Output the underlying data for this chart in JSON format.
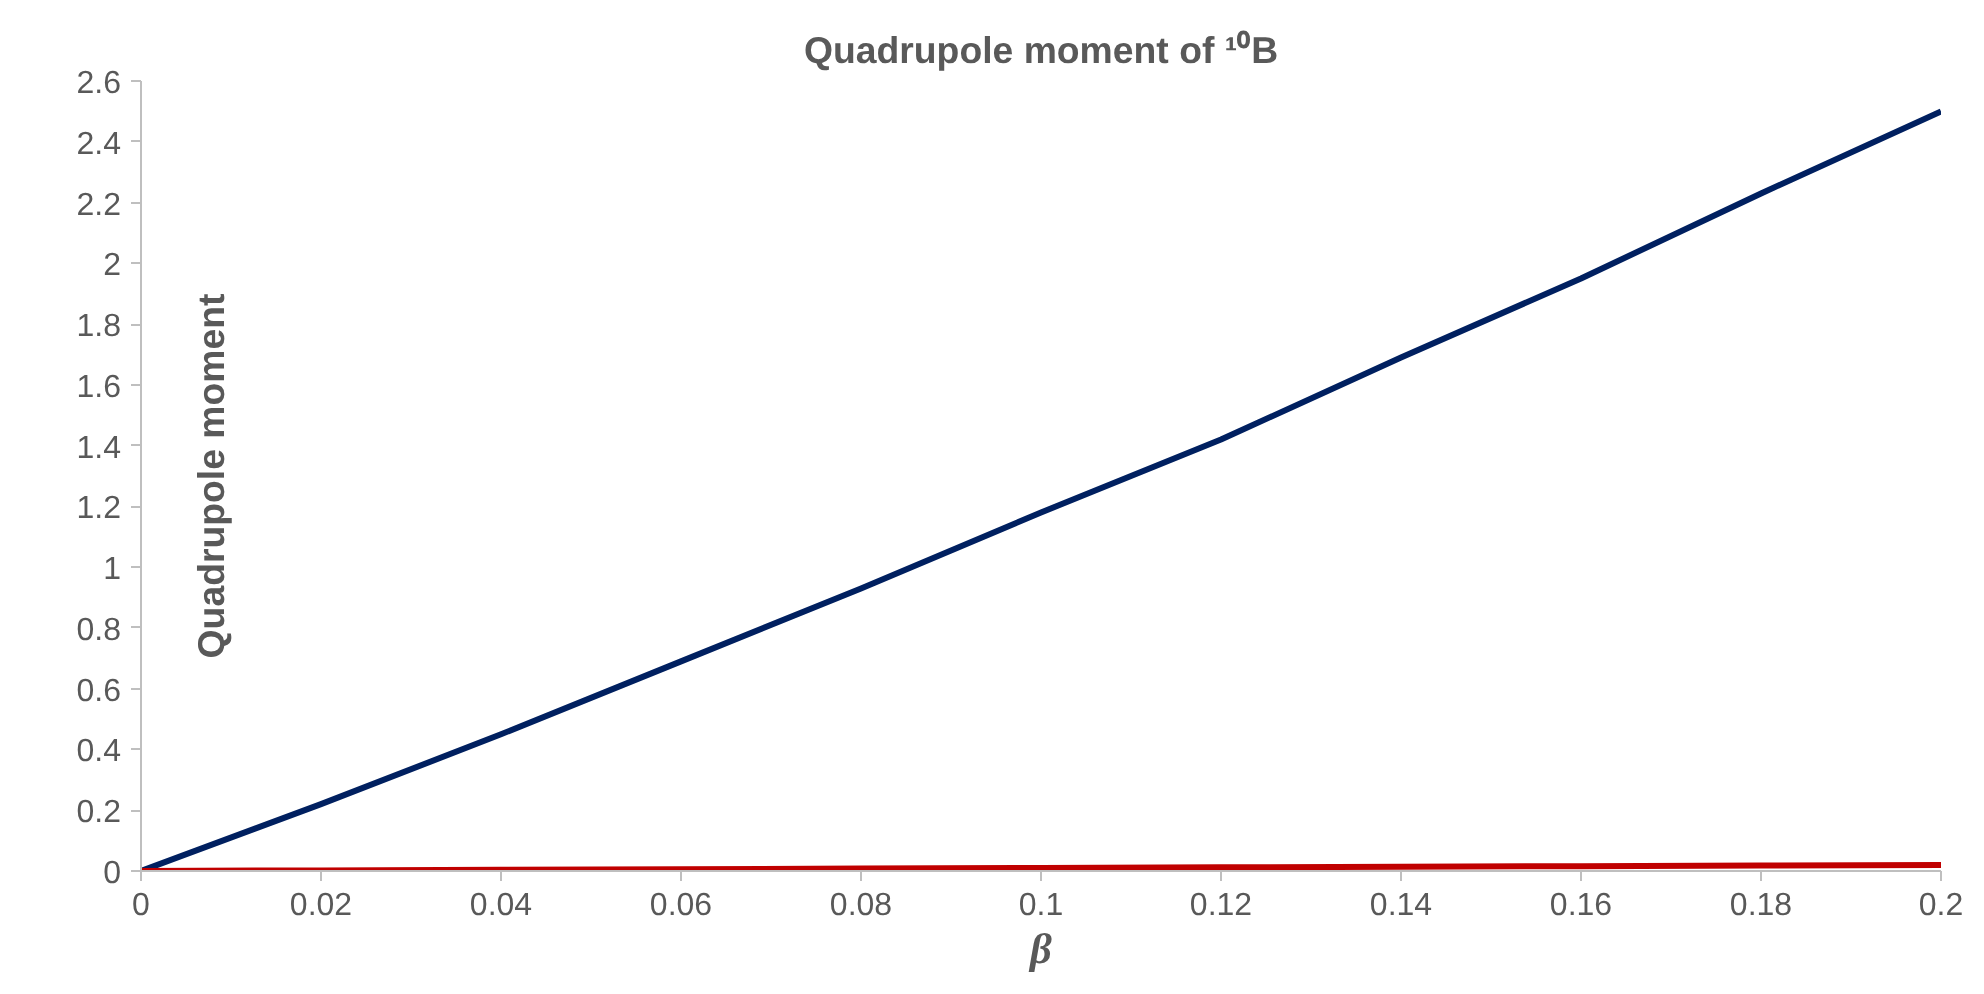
{
  "chart_data": {
    "type": "line",
    "title": "Quadrupole moment of ¹⁰B",
    "xlabel": "β",
    "ylabel": "Quadrupole moment",
    "x": [
      0,
      0.02,
      0.04,
      0.06,
      0.08,
      0.1,
      0.12,
      0.14,
      0.16,
      0.18,
      0.2
    ],
    "series": [
      {
        "color": "#002060",
        "values": [
          0,
          0.22,
          0.45,
          0.69,
          0.93,
          1.18,
          1.42,
          1.69,
          1.95,
          2.23,
          2.5
        ]
      },
      {
        "color": "#c00000",
        "values": [
          0,
          0.002,
          0.004,
          0.006,
          0.008,
          0.01,
          0.012,
          0.014,
          0.016,
          0.018,
          0.02
        ]
      }
    ],
    "xlim": [
      0,
      0.2
    ],
    "ylim": [
      0,
      2.6
    ],
    "xticks": [
      0,
      0.02,
      0.04,
      0.06,
      0.08,
      0.1,
      0.12,
      0.14,
      0.16,
      0.18,
      0.2
    ],
    "yticks": [
      0,
      0.2,
      0.4,
      0.6,
      0.8,
      1,
      1.2,
      1.4,
      1.6,
      1.8,
      2,
      2.2,
      2.4,
      2.6
    ],
    "grid": false
  }
}
